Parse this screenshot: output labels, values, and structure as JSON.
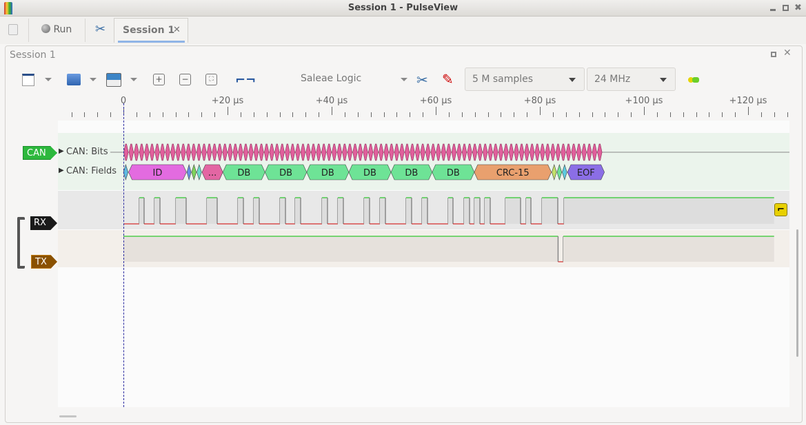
{
  "window": {
    "title": "Session 1 - PulseView"
  },
  "tabs": {
    "run_label": "Run",
    "session_tab": "Session 1",
    "close": "✕"
  },
  "session": {
    "title": "Session 1"
  },
  "toolbar": {
    "device": "Saleae Logic",
    "samples": "5 M samples",
    "samplerate": "24 MHz"
  },
  "ruler": {
    "unit": "µs",
    "labels": [
      "0",
      "+20 µs",
      "+40 µs",
      "+60 µs",
      "+80 µs",
      "+100 µs",
      "+120 µs"
    ],
    "values": [
      0,
      20,
      40,
      60,
      80,
      100,
      120
    ]
  },
  "decoder": {
    "name": "CAN",
    "rows": [
      "CAN: Bits",
      "CAN: Fields"
    ],
    "bit_count": 92,
    "bit_period_us": 1.0,
    "fields": [
      {
        "label": "",
        "start": 0,
        "end": 0.9,
        "color": "#5fb9e0"
      },
      {
        "label": "ID",
        "start": 1.0,
        "end": 12.1,
        "color": "#e36be0"
      },
      {
        "label": "",
        "start": 12.2,
        "end": 13.0,
        "color": "#6a8fe6"
      },
      {
        "label": "",
        "start": 13.1,
        "end": 14.0,
        "color": "#7fd35a"
      },
      {
        "label": "",
        "start": 14.1,
        "end": 15.0,
        "color": "#6adcc8"
      },
      {
        "label": "...",
        "start": 15.1,
        "end": 19.1,
        "color": "#e366a3"
      },
      {
        "label": "DB",
        "start": 19.1,
        "end": 27.2,
        "color": "#6ee396"
      },
      {
        "label": "DB",
        "start": 27.2,
        "end": 35.2,
        "color": "#6ee396"
      },
      {
        "label": "DB",
        "start": 35.2,
        "end": 43.3,
        "color": "#6ee396"
      },
      {
        "label": "DB",
        "start": 43.3,
        "end": 51.4,
        "color": "#6ee396"
      },
      {
        "label": "DB",
        "start": 51.4,
        "end": 59.3,
        "color": "#6ee396"
      },
      {
        "label": "DB",
        "start": 59.3,
        "end": 67.4,
        "color": "#6ee396"
      },
      {
        "label": "CRC-15",
        "start": 67.4,
        "end": 82.2,
        "color": "#e9a06e"
      },
      {
        "label": "",
        "start": 82.3,
        "end": 83.2,
        "color": "#c2e06a"
      },
      {
        "label": "",
        "start": 83.3,
        "end": 84.2,
        "color": "#6ee396"
      },
      {
        "label": "",
        "start": 84.3,
        "end": 85.2,
        "color": "#5fcbe0"
      },
      {
        "label": "EOF",
        "start": 85.3,
        "end": 92.4,
        "color": "#8b6ee6"
      }
    ]
  },
  "channels": [
    {
      "name": "RX",
      "color": "#1a1a1a",
      "initial": 0,
      "edges_us": [
        3.05,
        3.97,
        5.96,
        7.02,
        10.07,
        12.05,
        16.03,
        18.01,
        21.99,
        23.05,
        25.03,
        26.09,
        30.07,
        31.13,
        32.98,
        34.04,
        38.15,
        39.2,
        41.19,
        42.25,
        46.23,
        47.28,
        49.27,
        50.33,
        54.3,
        55.36,
        57.35,
        58.41,
        62.38,
        63.31,
        65.43,
        66.49,
        67.42,
        68.48,
        69.4,
        70.46,
        73.38,
        76.29,
        77.35,
        78.28,
        80.4,
        83.44,
        84.64
      ]
    },
    {
      "name": "TX",
      "color": "#8a5100",
      "initial": 1,
      "edges_us": [
        83.5,
        84.5
      ]
    }
  ],
  "colors": {
    "high": "#00c000",
    "low": "#d00000",
    "can_label": "#2db83d",
    "bit": "#e0609c"
  },
  "trigger": {
    "icon": "falling-edge-trigger-icon",
    "color": "#e8d000"
  }
}
